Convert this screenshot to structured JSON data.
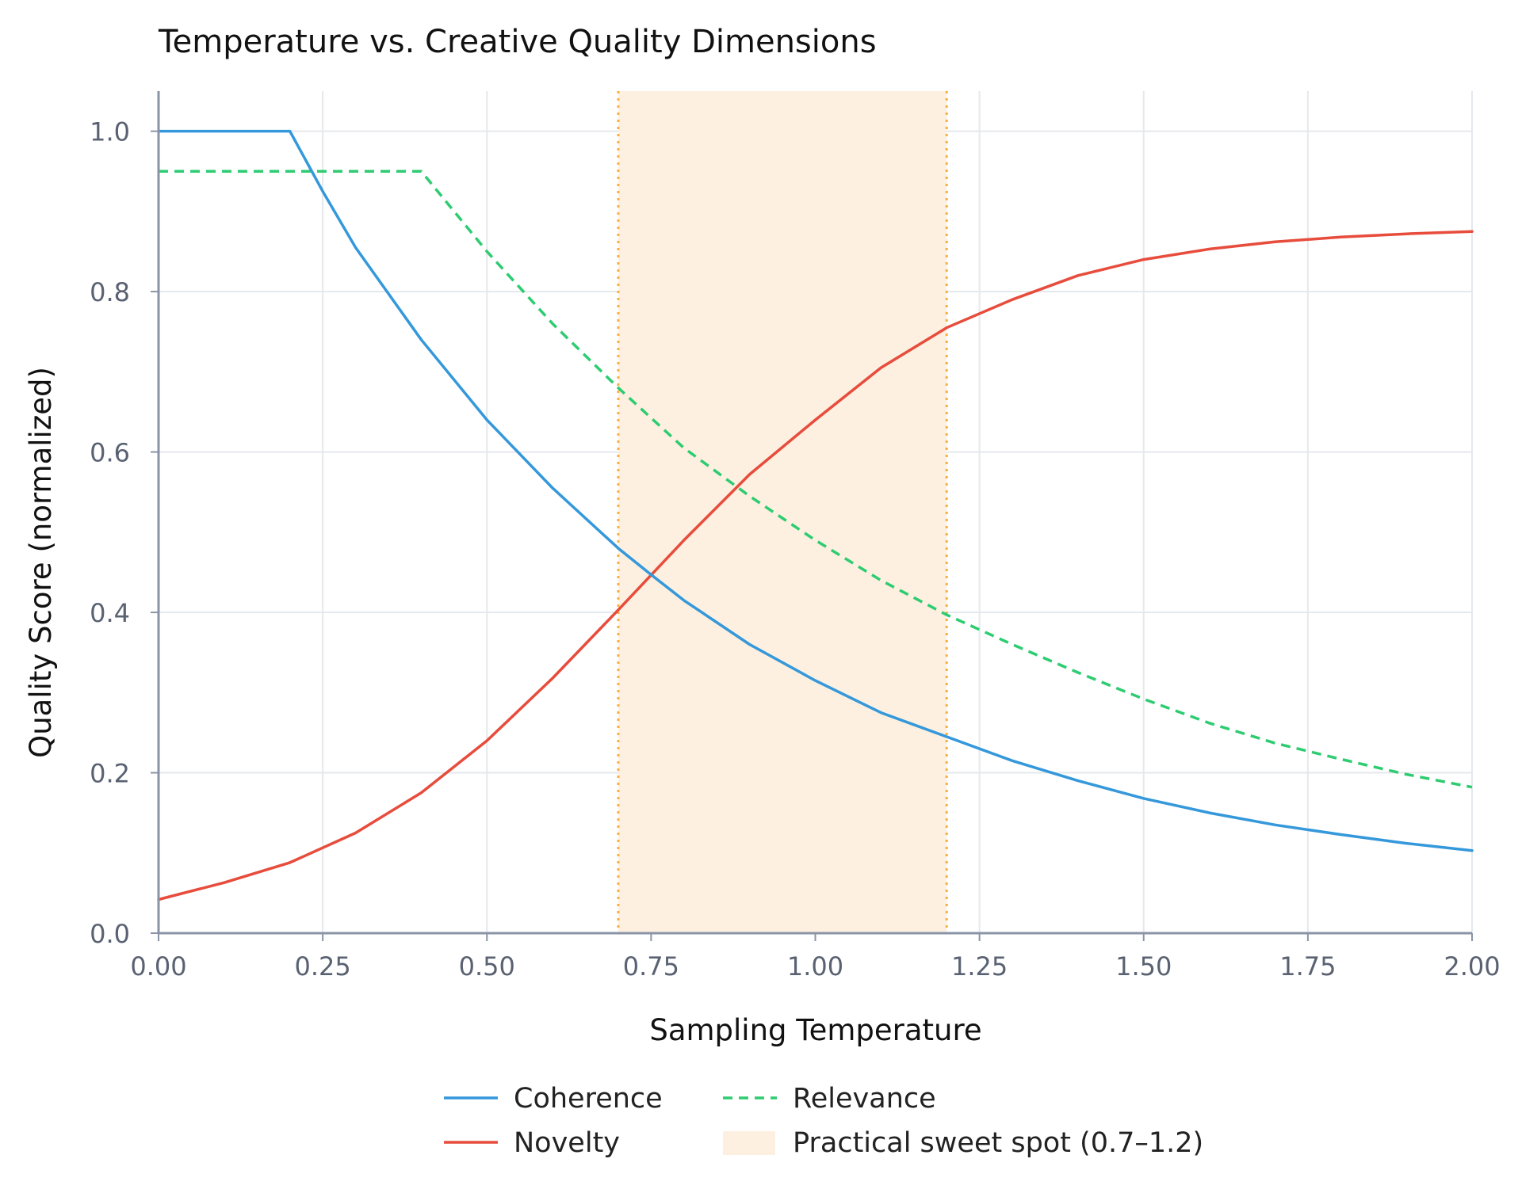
{
  "chart_data": {
    "type": "line",
    "title": "Temperature vs. Creative Quality Dimensions",
    "xlabel": "Sampling Temperature",
    "ylabel": "Quality Score (normalized)",
    "xlim": [
      0,
      2
    ],
    "ylim": [
      0,
      1.05
    ],
    "x_ticks": [
      {
        "value": 0,
        "label": "0.00"
      },
      {
        "value": 0.25,
        "label": "0.25"
      },
      {
        "value": 0.5,
        "label": "0.50"
      },
      {
        "value": 0.75,
        "label": "0.75"
      },
      {
        "value": 1.0,
        "label": "1.00"
      },
      {
        "value": 1.25,
        "label": "1.25"
      },
      {
        "value": 1.5,
        "label": "1.50"
      },
      {
        "value": 1.75,
        "label": "1.75"
      },
      {
        "value": 2.0,
        "label": "2.00"
      }
    ],
    "y_ticks": [
      {
        "value": 0,
        "label": "0.0"
      },
      {
        "value": 0.2,
        "label": "0.2"
      },
      {
        "value": 0.4,
        "label": "0.4"
      },
      {
        "value": 0.6,
        "label": "0.6"
      },
      {
        "value": 0.8,
        "label": "0.8"
      },
      {
        "value": 1.0,
        "label": "1.0"
      }
    ],
    "grid": true,
    "legend_position": "bottom-center",
    "series": [
      {
        "name": "Coherence",
        "color": "#3498db",
        "style": "solid",
        "x": [
          0,
          0.1,
          0.2,
          0.25,
          0.3,
          0.4,
          0.5,
          0.6,
          0.7,
          0.75,
          0.8,
          0.9,
          1.0,
          1.1,
          1.2,
          1.3,
          1.4,
          1.5,
          1.6,
          1.7,
          1.8,
          1.9,
          2.0
        ],
        "y": [
          1.0,
          1.0,
          1.0,
          0.925,
          0.855,
          0.74,
          0.64,
          0.555,
          0.48,
          0.447,
          0.415,
          0.36,
          0.315,
          0.275,
          0.245,
          0.215,
          0.19,
          0.168,
          0.15,
          0.135,
          0.123,
          0.112,
          0.103
        ]
      },
      {
        "name": "Relevance",
        "color": "#2ecc71",
        "style": "dashed",
        "x": [
          0,
          0.1,
          0.2,
          0.3,
          0.4,
          0.5,
          0.6,
          0.7,
          0.8,
          0.9,
          1.0,
          1.1,
          1.2,
          1.3,
          1.4,
          1.5,
          1.6,
          1.7,
          1.8,
          1.9,
          2.0
        ],
        "y": [
          0.95,
          0.95,
          0.95,
          0.95,
          0.95,
          0.85,
          0.76,
          0.68,
          0.605,
          0.545,
          0.49,
          0.44,
          0.397,
          0.36,
          0.325,
          0.292,
          0.262,
          0.237,
          0.217,
          0.198,
          0.182
        ]
      },
      {
        "name": "Novelty",
        "color": "#e74c3c",
        "style": "solid",
        "x": [
          0,
          0.1,
          0.2,
          0.3,
          0.4,
          0.5,
          0.6,
          0.7,
          0.8,
          0.9,
          1.0,
          1.1,
          1.2,
          1.3,
          1.4,
          1.5,
          1.6,
          1.7,
          1.8,
          1.9,
          2.0
        ],
        "y": [
          0.042,
          0.063,
          0.088,
          0.125,
          0.175,
          0.24,
          0.318,
          0.403,
          0.49,
          0.572,
          0.64,
          0.705,
          0.755,
          0.79,
          0.82,
          0.84,
          0.853,
          0.862,
          0.868,
          0.872,
          0.875
        ]
      }
    ],
    "shaded_region": {
      "label": "Practical sweet spot (0.7–1.2)",
      "x_start": 0.7,
      "x_end": 1.2,
      "fill_color": "#fdf0e0",
      "border_color": "#f5b041"
    },
    "colors": {
      "grid": "#e5e8ec",
      "axis": "#8a94a6",
      "tick_text": "#5a6272"
    }
  }
}
